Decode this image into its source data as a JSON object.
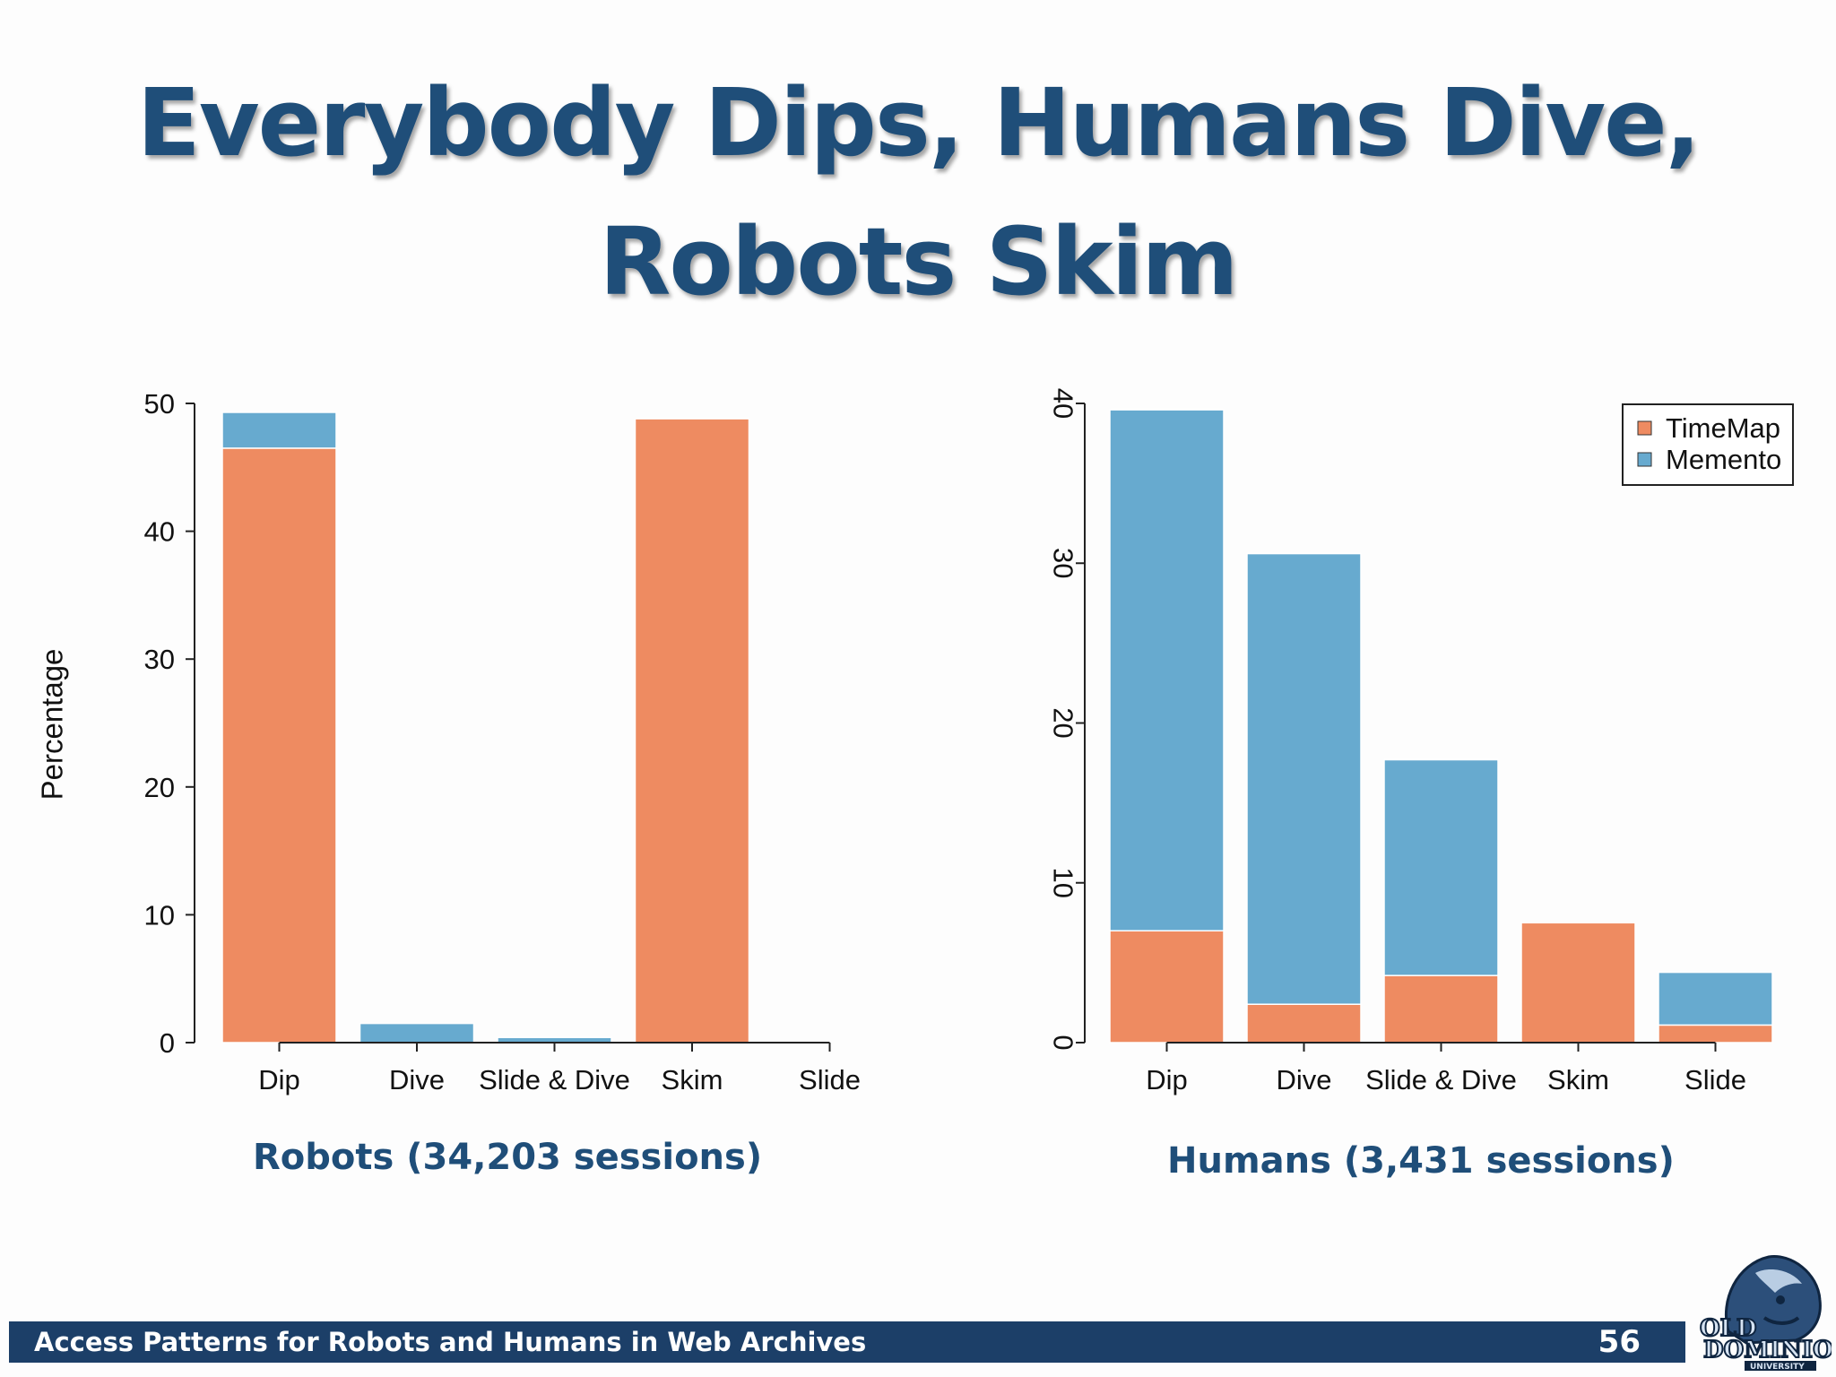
{
  "slide": {
    "title_line1": "Everybody Dips, Humans Dive,",
    "title_line2": "Robots Skim",
    "footer_text": "Access Patterns for Robots and Humans in Web Archives",
    "page_number": "56",
    "logo_text": "OLD DOMINION UNIVERSITY"
  },
  "colors": {
    "timemap": "#ee8b61",
    "memento": "#67aacf",
    "title": "#1f4e79",
    "footer_bg": "#1c3f68"
  },
  "chart_data": [
    {
      "type": "bar",
      "stacked": true,
      "title": "Robots (34,203 sessions)",
      "ylabel": "Percentage",
      "categories": [
        "Dip",
        "Dive",
        "Slide & Dive",
        "Skim",
        "Slide"
      ],
      "series": [
        {
          "name": "TimeMap",
          "values": [
            46.5,
            0,
            0,
            48.8,
            0
          ]
        },
        {
          "name": "Memento",
          "values": [
            2.8,
            1.5,
            0.4,
            0,
            0
          ]
        }
      ],
      "ylim": [
        0,
        50
      ],
      "yticks": [
        0,
        10,
        20,
        30,
        40,
        50
      ],
      "ytick_rotation": "horizontal",
      "legend": false
    },
    {
      "type": "bar",
      "stacked": true,
      "title": "Humans (3,431 sessions)",
      "ylabel": "",
      "categories": [
        "Dip",
        "Dive",
        "Slide & Dive",
        "Skim",
        "Slide"
      ],
      "series": [
        {
          "name": "TimeMap",
          "values": [
            7.0,
            2.4,
            4.2,
            7.5,
            1.1
          ]
        },
        {
          "name": "Memento",
          "values": [
            32.6,
            28.2,
            13.5,
            0,
            3.3
          ]
        }
      ],
      "ylim": [
        0,
        40
      ],
      "yticks": [
        0,
        10,
        20,
        30,
        40
      ],
      "ytick_rotation": "vertical",
      "legend": true,
      "legend_position": "top-right"
    }
  ]
}
